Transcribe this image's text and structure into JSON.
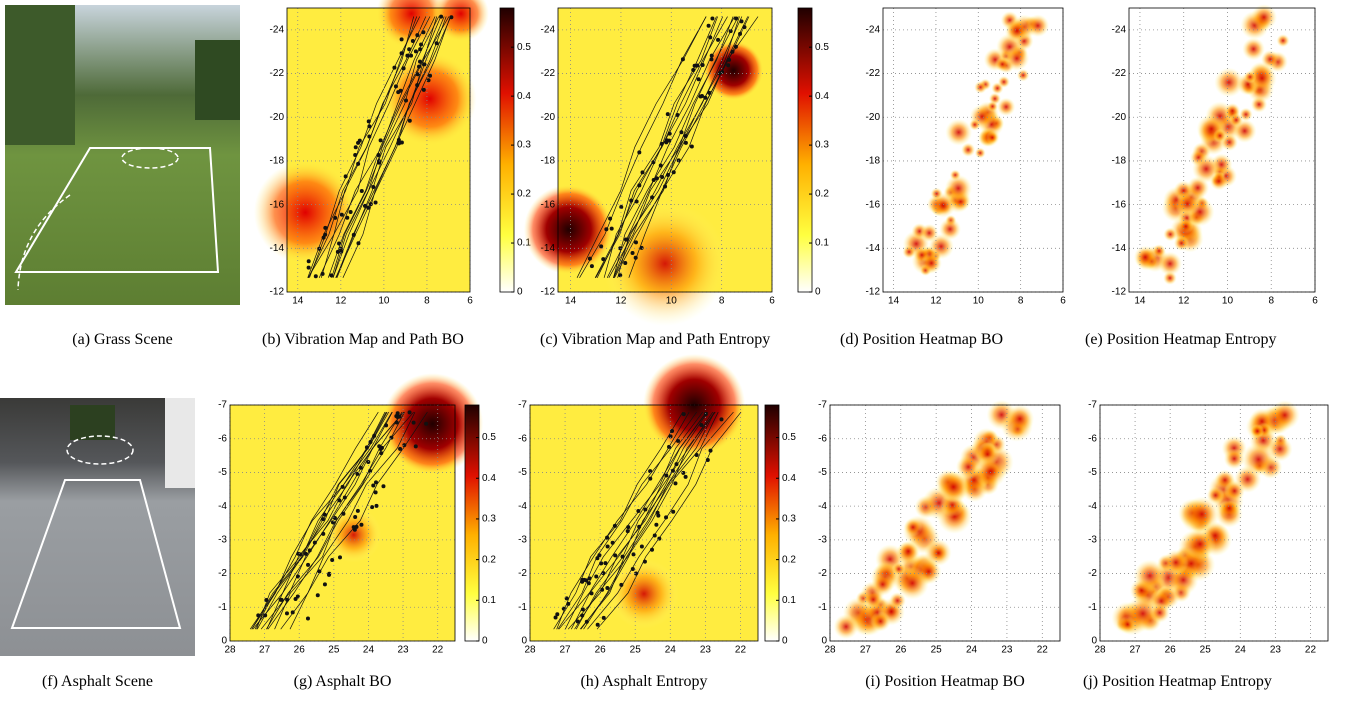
{
  "panels": [
    {
      "caption": "(a) Grass Scene"
    },
    {
      "caption": "(b) Vibration Map and Path BO",
      "xticks": [
        14,
        12,
        10,
        8,
        6
      ],
      "yticks": [
        -24,
        -22,
        -20,
        -18,
        -16,
        -14,
        -12
      ],
      "colorbar": [
        0,
        0.1,
        0.2,
        0.3,
        0.4,
        0.5
      ]
    },
    {
      "caption": "(c) Vibration Map and Path Entropy",
      "xticks": [
        14,
        12,
        10,
        8,
        6
      ],
      "yticks": [
        -24,
        -22,
        -20,
        -18,
        -16,
        -14,
        -12
      ],
      "colorbar": [
        0,
        0.1,
        0.2,
        0.3,
        0.4,
        0.5
      ]
    },
    {
      "caption": "(d) Position Heatmap BO",
      "xticks": [
        14,
        12,
        10,
        8,
        6
      ],
      "yticks": [
        -24,
        -22,
        -20,
        -18,
        -16,
        -14,
        -12
      ]
    },
    {
      "caption": "(e) Position Heatmap Entropy",
      "xticks": [
        14,
        12,
        10,
        8,
        6
      ],
      "yticks": [
        -24,
        -22,
        -20,
        -18,
        -16,
        -14,
        -12
      ]
    },
    {
      "caption": "(f) Asphalt Scene"
    },
    {
      "caption": "(g) Asphalt BO",
      "xticks": [
        28,
        27,
        26,
        25,
        24,
        23,
        22
      ],
      "yticks": [
        -7,
        -6,
        -5,
        -4,
        -3,
        -2,
        -1,
        0
      ],
      "colorbar": [
        0,
        0.1,
        0.2,
        0.3,
        0.4,
        0.5
      ]
    },
    {
      "caption": "(h) Asphalt Entropy",
      "xticks": [
        28,
        27,
        26,
        25,
        24,
        23,
        22
      ],
      "yticks": [
        -7,
        -6,
        -5,
        -4,
        -3,
        -2,
        -1,
        0
      ],
      "colorbar": [
        0,
        0.1,
        0.2,
        0.3,
        0.4,
        0.5
      ]
    },
    {
      "caption": "(i) Position Heatmap BO",
      "xticks": [
        28,
        27,
        26,
        25,
        24,
        23,
        22
      ],
      "yticks": [
        -7,
        -6,
        -5,
        -4,
        -3,
        -2,
        -1,
        0
      ]
    },
    {
      "caption": "(j) Position Heatmap Entropy",
      "xticks": [
        28,
        27,
        26,
        25,
        24,
        23,
        22
      ],
      "yticks": [
        -7,
        -6,
        -5,
        -4,
        -3,
        -2,
        -1,
        0
      ]
    }
  ]
}
